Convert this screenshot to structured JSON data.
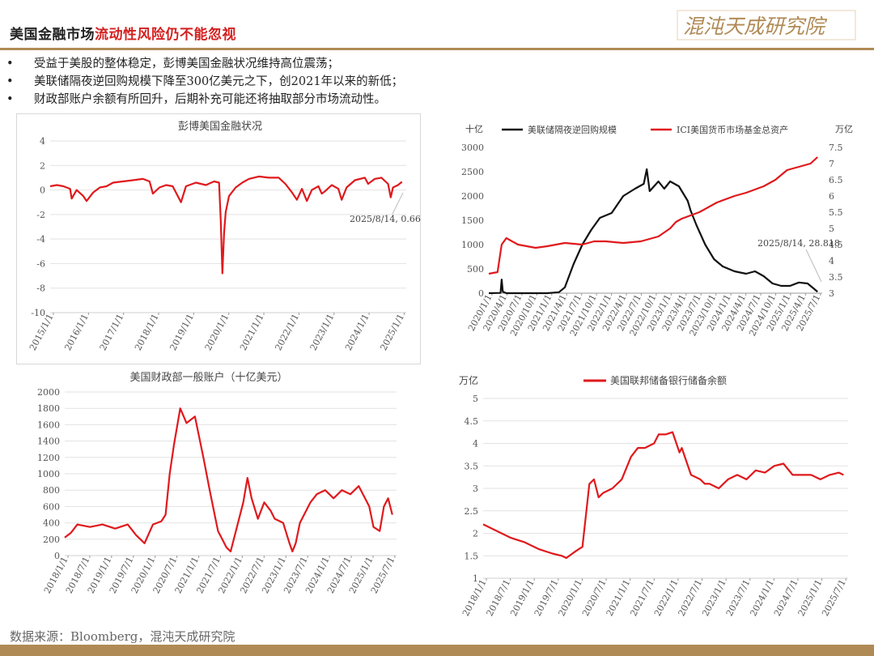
{
  "header": {
    "title_black": "美国金融市场",
    "title_red": "流动性风险仍不能忽视",
    "logo_text": "混沌天成研究院"
  },
  "bullets": [
    "受益于美股的整体稳定，彭博美国金融状况维持高位震荡；",
    "美联储隔夜逆回购规模下降至300亿美元之下，创2021年以来的新低；",
    "财政部账户余额有所回升，后期补充可能还将抽取部分市场流动性。"
  ],
  "footer": {
    "source": "数据来源：Bloomberg，混沌天成研究院"
  },
  "colors": {
    "red": "#e0191c",
    "black": "#111111",
    "gold": "#b08a55"
  },
  "chart_data": [
    {
      "id": "bfci",
      "type": "line",
      "title": "彭博美国金融状况",
      "yticks": [
        "4",
        "2",
        "0",
        "-2",
        "-4",
        "-6",
        "-8",
        "-10"
      ],
      "ylim": [
        -10,
        4
      ],
      "xticks": [
        "2015/1/1",
        "2016/1/1",
        "2017/1/1",
        "2018/1/1",
        "2019/1/1",
        "2020/1/1",
        "2021/1/1",
        "2022/1/1",
        "2023/1/1",
        "2024/1/1",
        "2025/1/1"
      ],
      "xlim": [
        2015.0,
        2025.75
      ],
      "annotation": "2025/8/14, 0.666",
      "series": [
        {
          "color": "#e0191c",
          "x": [
            2015.0,
            2015.2,
            2015.4,
            2015.6,
            2015.65,
            2015.8,
            2016.0,
            2016.1,
            2016.3,
            2016.5,
            2016.7,
            2016.9,
            2017.2,
            2017.5,
            2017.8,
            2018.0,
            2018.1,
            2018.3,
            2018.5,
            2018.7,
            2018.95,
            2019.1,
            2019.4,
            2019.7,
            2019.95,
            2020.1,
            2020.15,
            2020.2,
            2020.25,
            2020.3,
            2020.4,
            2020.6,
            2020.8,
            2021.0,
            2021.3,
            2021.6,
            2021.9,
            2022.1,
            2022.3,
            2022.45,
            2022.6,
            2022.75,
            2022.9,
            2023.1,
            2023.2,
            2023.3,
            2023.5,
            2023.7,
            2023.8,
            2023.95,
            2024.2,
            2024.5,
            2024.6,
            2024.8,
            2025.0,
            2025.2,
            2025.28,
            2025.35,
            2025.5,
            2025.62
          ],
          "y": [
            0.3,
            0.4,
            0.3,
            0.1,
            -0.7,
            0.0,
            -0.5,
            -0.9,
            -0.2,
            0.2,
            0.3,
            0.6,
            0.7,
            0.8,
            0.9,
            0.7,
            -0.3,
            0.2,
            0.4,
            0.3,
            -1.0,
            0.3,
            0.6,
            0.4,
            0.7,
            0.6,
            -2.5,
            -6.8,
            -3.5,
            -1.8,
            -0.5,
            0.2,
            0.6,
            0.9,
            1.1,
            1.0,
            1.0,
            0.5,
            -0.2,
            -0.8,
            0.1,
            -0.9,
            0.0,
            0.3,
            -0.3,
            -0.1,
            0.4,
            0.1,
            -0.8,
            0.2,
            0.8,
            1.0,
            0.5,
            0.9,
            1.0,
            0.5,
            -0.6,
            0.2,
            0.4,
            0.666
          ]
        }
      ]
    },
    {
      "id": "rrp",
      "type": "line",
      "y_unit_left": "十亿",
      "y_unit_right": "万亿",
      "legend": [
        "美联储隔夜逆回购规模",
        "ICI美国货币市场基金总资产"
      ],
      "legend_position": "top",
      "yticks_left": [
        "3000",
        "2500",
        "2000",
        "1500",
        "1000",
        "500",
        "0"
      ],
      "yticks_right": [
        "7.5",
        "7",
        "6.5",
        "6",
        "5.5",
        "5",
        "4.5",
        "4",
        "3.5",
        "3"
      ],
      "ylim_left": [
        0,
        3000
      ],
      "ylim_right": [
        3,
        7.5
      ],
      "xticks": [
        "2020/1/1",
        "2020/4/1",
        "2020/7/1",
        "2020/10/1",
        "2021/1/1",
        "2021/4/1",
        "2021/7/1",
        "2021/10/1",
        "2022/1/1",
        "2022/4/1",
        "2022/7/1",
        "2022/10/1",
        "2023/1/1",
        "2023/4/1",
        "2023/7/1",
        "2023/10/1",
        "2024/1/1",
        "2024/4/1",
        "2024/7/1",
        "2024/10/1",
        "2025/1/1",
        "2025/4/1",
        "2025/7/1"
      ],
      "xlim": [
        2020.0,
        2025.7
      ],
      "annotation": "2025/8/14, 28.818",
      "series": [
        {
          "name": "美联储隔夜逆回购规模",
          "axis": "left",
          "color": "#111111",
          "x": [
            2020.0,
            2020.2,
            2020.22,
            2020.24,
            2020.3,
            2021.0,
            2021.2,
            2021.3,
            2021.45,
            2021.6,
            2021.75,
            2021.9,
            2022.1,
            2022.3,
            2022.5,
            2022.65,
            2022.7,
            2022.75,
            2022.9,
            2023.0,
            2023.1,
            2023.25,
            2023.4,
            2023.45,
            2023.55,
            2023.7,
            2023.85,
            2024.0,
            2024.2,
            2024.4,
            2024.55,
            2024.7,
            2024.85,
            2025.0,
            2025.15,
            2025.3,
            2025.45,
            2025.55,
            2025.62
          ],
          "y": [
            0,
            5,
            280,
            30,
            0,
            0,
            20,
            120,
            600,
            1000,
            1300,
            1550,
            1650,
            2000,
            2150,
            2250,
            2550,
            2100,
            2300,
            2150,
            2300,
            2200,
            1900,
            1700,
            1400,
            1000,
            700,
            550,
            450,
            400,
            450,
            350,
            200,
            150,
            150,
            220,
            200,
            100,
            29
          ]
        },
        {
          "name": "ICI美国货币市场基金总资产",
          "axis": "right",
          "color": "#e0191c",
          "x": [
            2020.0,
            2020.15,
            2020.22,
            2020.3,
            2020.5,
            2020.8,
            2021.0,
            2021.3,
            2021.6,
            2021.8,
            2022.0,
            2022.3,
            2022.6,
            2022.9,
            2023.1,
            2023.2,
            2023.3,
            2023.6,
            2023.9,
            2024.2,
            2024.4,
            2024.7,
            2024.9,
            2025.1,
            2025.3,
            2025.5,
            2025.62
          ],
          "y": [
            3.6,
            3.65,
            4.5,
            4.7,
            4.5,
            4.4,
            4.45,
            4.55,
            4.5,
            4.6,
            4.6,
            4.55,
            4.6,
            4.75,
            5.0,
            5.2,
            5.3,
            5.5,
            5.8,
            6.0,
            6.1,
            6.3,
            6.5,
            6.8,
            6.9,
            7.0,
            7.2
          ]
        }
      ]
    },
    {
      "id": "tga",
      "type": "line",
      "title": "美国财政部一般账户（十亿美元）",
      "yticks": [
        "2000",
        "1800",
        "1600",
        "1400",
        "1200",
        "1000",
        "800",
        "600",
        "400",
        "200",
        "0"
      ],
      "ylim": [
        0,
        2000
      ],
      "xticks": [
        "2018/1/1",
        "2018/7/1",
        "2019/1/1",
        "2019/7/1",
        "2020/1/1",
        "2020/7/1",
        "2021/1/1",
        "2021/7/1",
        "2022/1/1",
        "2022/7/1",
        "2023/1/1",
        "2023/7/1",
        "2024/1/1",
        "2024/7/1",
        "2025/1/1",
        "2025/7/1"
      ],
      "xlim": [
        2018.0,
        2025.9
      ],
      "series": [
        {
          "color": "#e0191c",
          "x": [
            2018.0,
            2018.15,
            2018.3,
            2018.6,
            2018.9,
            2019.2,
            2019.5,
            2019.7,
            2019.9,
            2020.1,
            2020.2,
            2020.3,
            2020.4,
            2020.5,
            2020.6,
            2020.75,
            2020.9,
            2021.1,
            2021.3,
            2021.45,
            2021.55,
            2021.65,
            2021.75,
            2021.85,
            2021.95,
            2022.1,
            2022.25,
            2022.35,
            2022.45,
            2022.6,
            2022.75,
            2022.9,
            2023.0,
            2023.2,
            2023.35,
            2023.42,
            2023.5,
            2023.6,
            2023.7,
            2023.85,
            2024.0,
            2024.2,
            2024.4,
            2024.6,
            2024.8,
            2025.0,
            2025.15,
            2025.25,
            2025.35,
            2025.5,
            2025.6,
            2025.7,
            2025.8
          ],
          "y": [
            220,
            280,
            380,
            350,
            380,
            330,
            380,
            250,
            150,
            380,
            400,
            420,
            500,
            1000,
            1350,
            1800,
            1620,
            1700,
            1200,
            800,
            550,
            300,
            200,
            100,
            50,
            350,
            650,
            950,
            700,
            450,
            650,
            550,
            450,
            400,
            150,
            50,
            150,
            400,
            500,
            650,
            750,
            800,
            700,
            800,
            750,
            850,
            700,
            600,
            350,
            300,
            600,
            700,
            500
          ]
        }
      ]
    },
    {
      "id": "reserves",
      "type": "line",
      "y_unit": "万亿",
      "legend": [
        "美国联邦储备银行储备余额"
      ],
      "legend_position": "top",
      "yticks": [
        "5",
        "4.5",
        "4",
        "3.5",
        "3",
        "2.5",
        "2",
        "1.5",
        "1"
      ],
      "ylim": [
        1,
        5
      ],
      "xticks": [
        "2018/1/1",
        "2018/7/1",
        "2019/1/1",
        "2019/7/1",
        "2020/1/1",
        "2020/7/1",
        "2021/1/1",
        "2021/7/1",
        "2022/1/1",
        "2022/7/1",
        "2023/1/1",
        "2023/7/1",
        "2024/1/1",
        "2024/7/1",
        "2025/1/1",
        "2025/7/1"
      ],
      "xlim": [
        2018.0,
        2025.9
      ],
      "series": [
        {
          "color": "#e0191c",
          "x": [
            2018.0,
            2018.3,
            2018.6,
            2018.9,
            2019.2,
            2019.5,
            2019.7,
            2019.8,
            2020.0,
            2020.15,
            2020.3,
            2020.4,
            2020.5,
            2020.6,
            2020.8,
            2021.0,
            2021.2,
            2021.35,
            2021.5,
            2021.7,
            2021.8,
            2021.95,
            2022.1,
            2022.25,
            2022.3,
            2022.5,
            2022.7,
            2022.8,
            2022.9,
            2023.1,
            2023.3,
            2023.5,
            2023.7,
            2023.9,
            2024.1,
            2024.3,
            2024.5,
            2024.7,
            2024.9,
            2025.1,
            2025.3,
            2025.5,
            2025.7,
            2025.8
          ],
          "y": [
            2.2,
            2.05,
            1.9,
            1.8,
            1.65,
            1.55,
            1.5,
            1.45,
            1.6,
            1.7,
            3.1,
            3.2,
            2.8,
            2.9,
            3.0,
            3.2,
            3.7,
            3.9,
            3.9,
            4.0,
            4.2,
            4.2,
            4.25,
            3.8,
            3.9,
            3.3,
            3.2,
            3.1,
            3.1,
            3.0,
            3.2,
            3.3,
            3.2,
            3.4,
            3.35,
            3.5,
            3.55,
            3.3,
            3.3,
            3.3,
            3.2,
            3.3,
            3.35,
            3.3
          ]
        }
      ]
    }
  ]
}
